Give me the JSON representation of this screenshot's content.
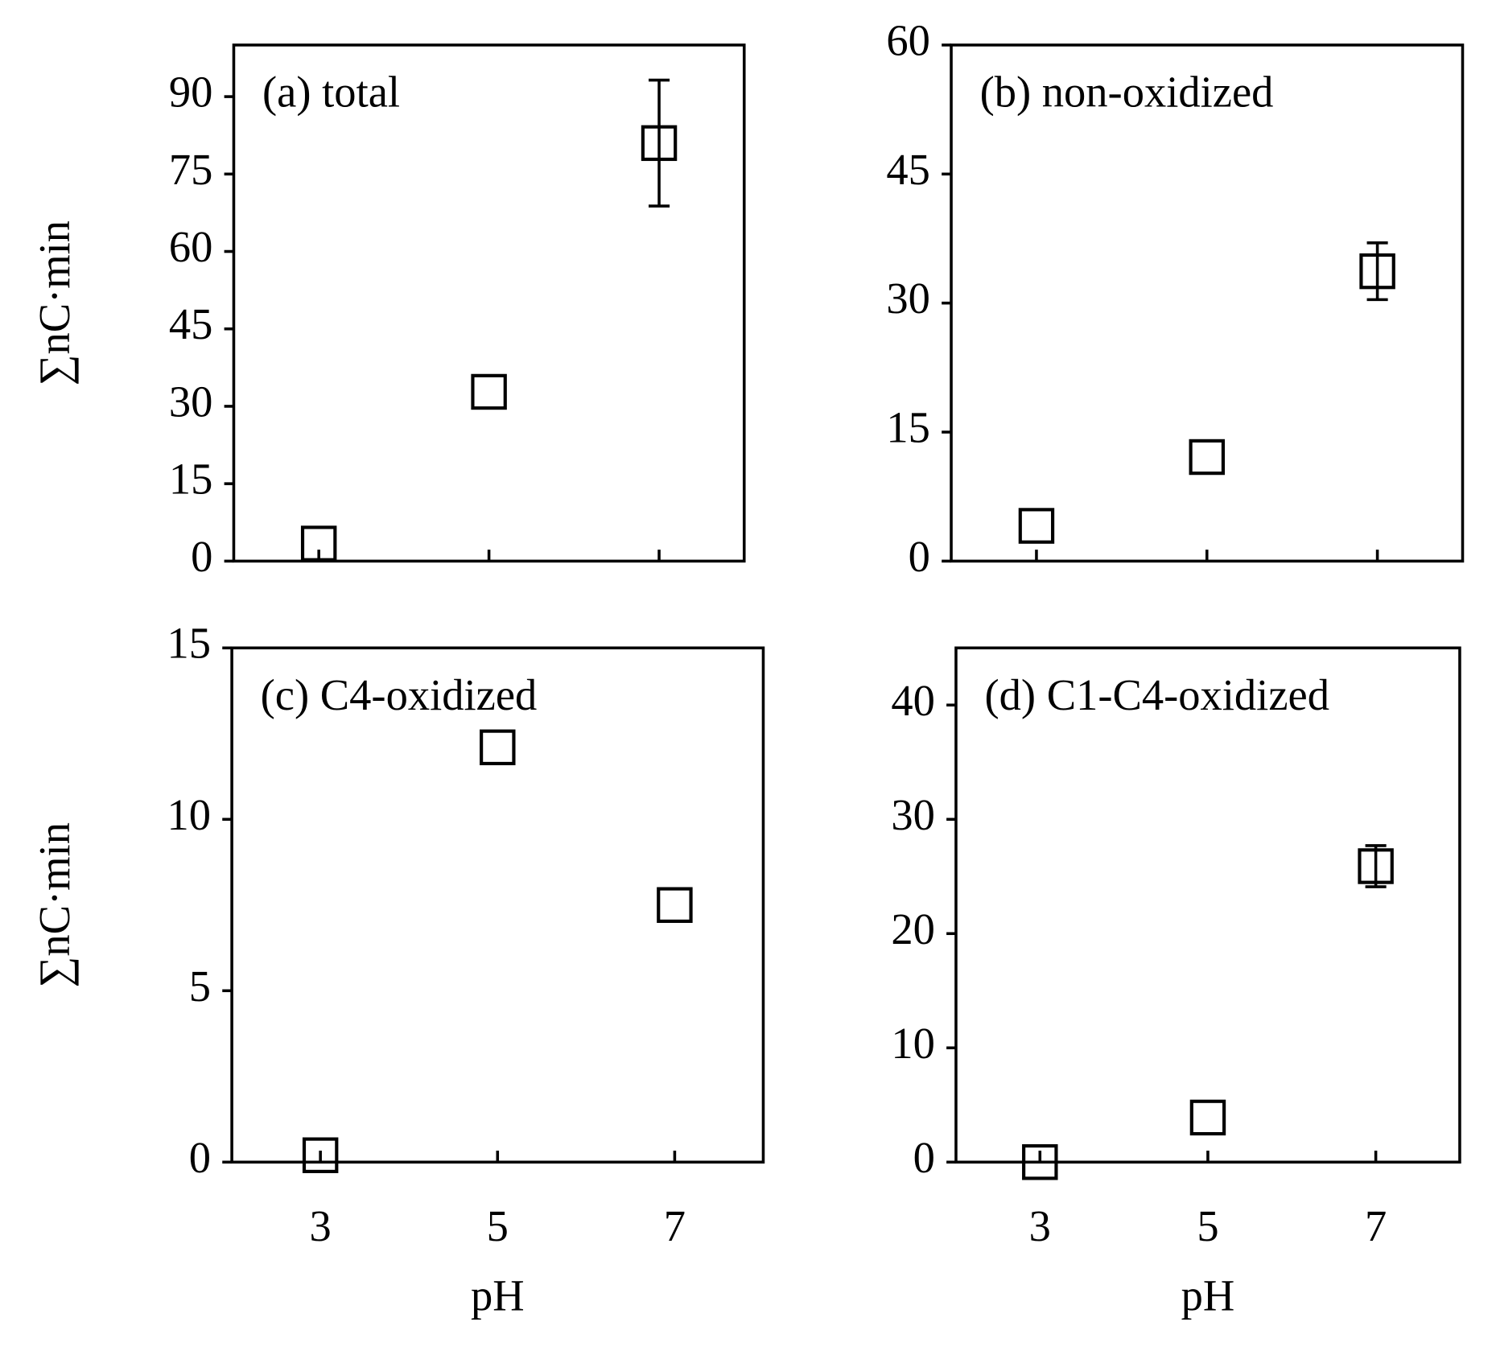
{
  "chart_data": [
    {
      "type": "scatter",
      "annotation": "(a) total",
      "y_label": "∑nC·min",
      "x": [
        3,
        5,
        7
      ],
      "values": [
        3.4,
        32.8,
        81
      ],
      "errors": [
        null,
        null,
        12.2
      ],
      "xlim": [
        2,
        8
      ],
      "xticks": [
        3,
        5,
        7
      ],
      "show_xtick_labels": false,
      "ylim": [
        0,
        100
      ],
      "yticks": [
        0,
        15,
        30,
        45,
        60,
        75,
        90
      ],
      "color": "#000000"
    },
    {
      "type": "scatter",
      "annotation": "(b) non-oxidized",
      "x": [
        3,
        5,
        7
      ],
      "values": [
        4.1,
        12.1,
        33.7
      ],
      "errors": [
        null,
        null,
        3.3
      ],
      "xlim": [
        2,
        8
      ],
      "xticks": [
        3,
        5,
        7
      ],
      "show_xtick_labels": false,
      "ylim": [
        0,
        60
      ],
      "yticks": [
        0,
        15,
        30,
        45,
        60
      ],
      "color": "#000000"
    },
    {
      "type": "scatter",
      "annotation": "(c) C4-oxidized",
      "y_label": "∑nC·min",
      "x_label": "pH",
      "x": [
        3,
        5,
        7
      ],
      "values": [
        0.2,
        12.1,
        7.5
      ],
      "errors": [
        null,
        null,
        null
      ],
      "xlim": [
        2,
        8
      ],
      "xticks": [
        3,
        5,
        7
      ],
      "show_xtick_labels": true,
      "ylim": [
        0,
        15
      ],
      "yticks": [
        0,
        5,
        10,
        15
      ],
      "color": "#000000"
    },
    {
      "type": "scatter",
      "annotation": "(d) C1-C4-oxidized",
      "x_label": "pH",
      "x": [
        3,
        5,
        7
      ],
      "values": [
        0,
        3.9,
        25.9
      ],
      "errors": [
        null,
        null,
        1.8
      ],
      "xlim": [
        2,
        8
      ],
      "xticks": [
        3,
        5,
        7
      ],
      "show_xtick_labels": true,
      "ylim": [
        0,
        45
      ],
      "yticks": [
        0,
        10,
        20,
        30,
        40
      ],
      "color": "#000000"
    }
  ]
}
